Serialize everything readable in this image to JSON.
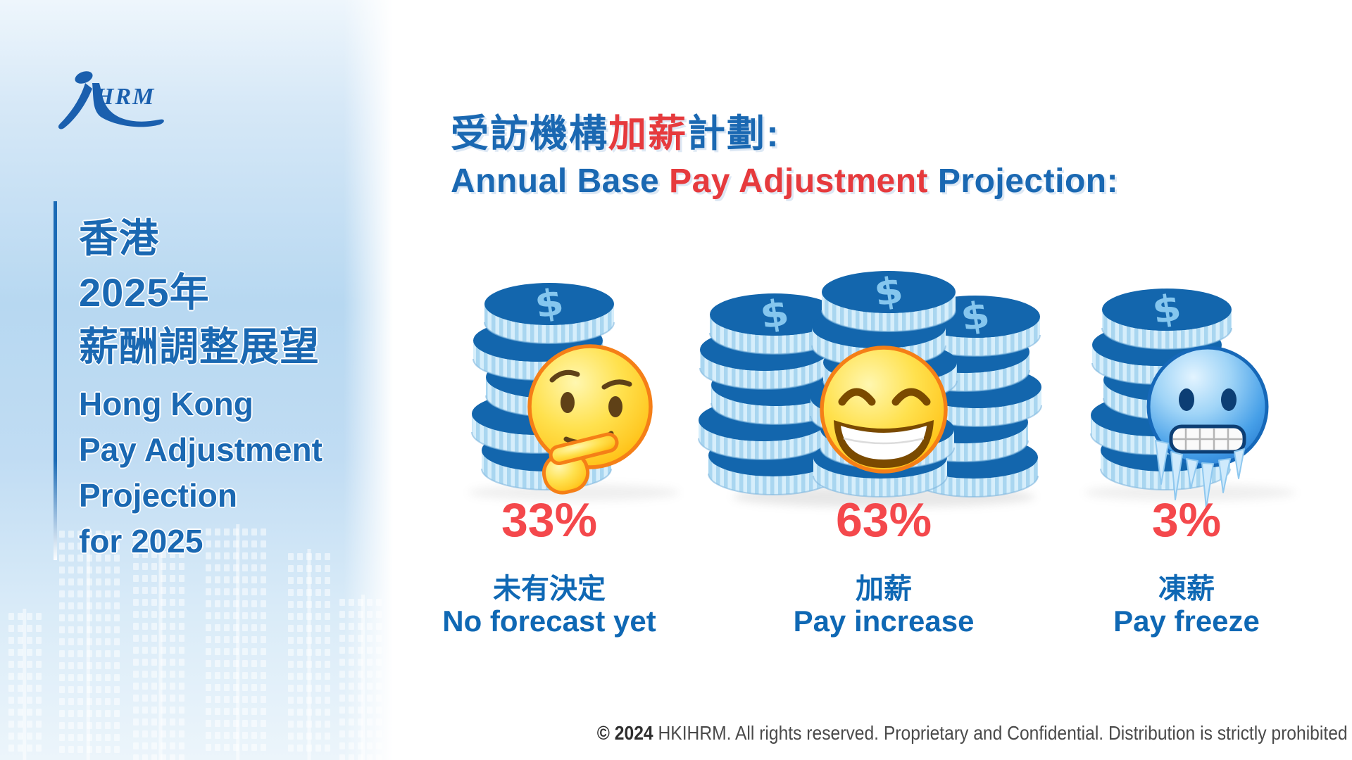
{
  "logo": {
    "brand": "HRM",
    "icon": "person-brush-stroke-icon"
  },
  "sidebar": {
    "zh": [
      "香港",
      "2025年",
      "薪酬調整展望"
    ],
    "en": [
      "Hong Kong",
      "Pay Adjustment",
      "Projection",
      "for 2025"
    ]
  },
  "title": {
    "zh_pre": "受訪機構",
    "zh_highlight": "加薪",
    "zh_post": "計劃:",
    "en_pre": "Annual Base ",
    "en_highlight": "Pay Adjustment",
    "en_post": " Projection:"
  },
  "coin_symbol": "$",
  "columns": [
    {
      "percent": "33%",
      "label_zh": "未有決定",
      "label_en": "No forecast yet",
      "emoji": "thinking-face",
      "coin_stacks": 1
    },
    {
      "percent": "63%",
      "label_zh": "加薪",
      "label_en": "Pay increase",
      "emoji": "beaming-face",
      "coin_stacks": 3
    },
    {
      "percent": "3%",
      "label_zh": "凍薪",
      "label_en": "Pay freeze",
      "emoji": "cold-frozen-face",
      "coin_stacks": 1
    }
  ],
  "footer": {
    "copyright_bold": "© 2024",
    "text": " HKIHRM. All rights reserved. Proprietary and Confidential. Distribution is strictly prohibited"
  },
  "colors": {
    "blue": "#1a68b2",
    "red": "#e63a3d",
    "percent_red": "#f4484c",
    "coin_face": "#1366ad",
    "coin_edge": "#a9d6f0",
    "coin_edge_light": "#d6eefb",
    "dollar": "#85c6ee"
  },
  "chart_data": {
    "type": "bar",
    "categories": [
      "未有決定 No forecast yet",
      "加薪 Pay increase",
      "凍薪 Pay freeze"
    ],
    "values": [
      33,
      63,
      3
    ],
    "unit": "%",
    "title": "受訪機構加薪計劃: Annual Base Pay Adjustment Projection",
    "xlabel": "",
    "ylabel": "",
    "legend": [],
    "notes": "pictograph: coin stacks with emoji faces; middle category (63%) shown with three coin stacks"
  }
}
